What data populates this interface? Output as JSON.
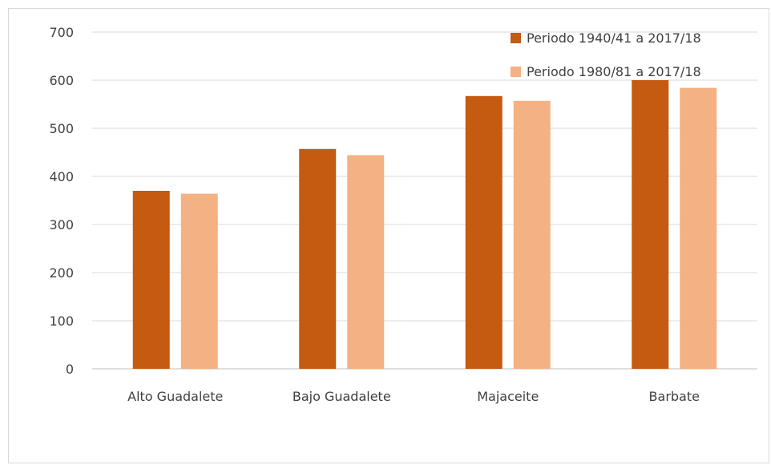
{
  "chart_data": {
    "type": "bar",
    "categories": [
      "Alto Guadalete",
      "Bajo Guadalete",
      "Majaceite",
      "Barbate"
    ],
    "series": [
      {
        "name": "Periodo 1940/41 a 2017/18",
        "values": [
          370,
          457,
          567,
          600
        ],
        "color": "#c55a11"
      },
      {
        "name": "Periodo 1980/81 a 2017/18",
        "values": [
          364,
          444,
          557,
          584
        ],
        "color": "#f4b183"
      }
    ],
    "title": "",
    "xlabel": "",
    "ylabel": "",
    "ylim": [
      0,
      700
    ],
    "yticks": [
      0,
      100,
      200,
      300,
      400,
      500,
      600,
      700
    ],
    "grid": true,
    "legend_position": "top-right"
  }
}
